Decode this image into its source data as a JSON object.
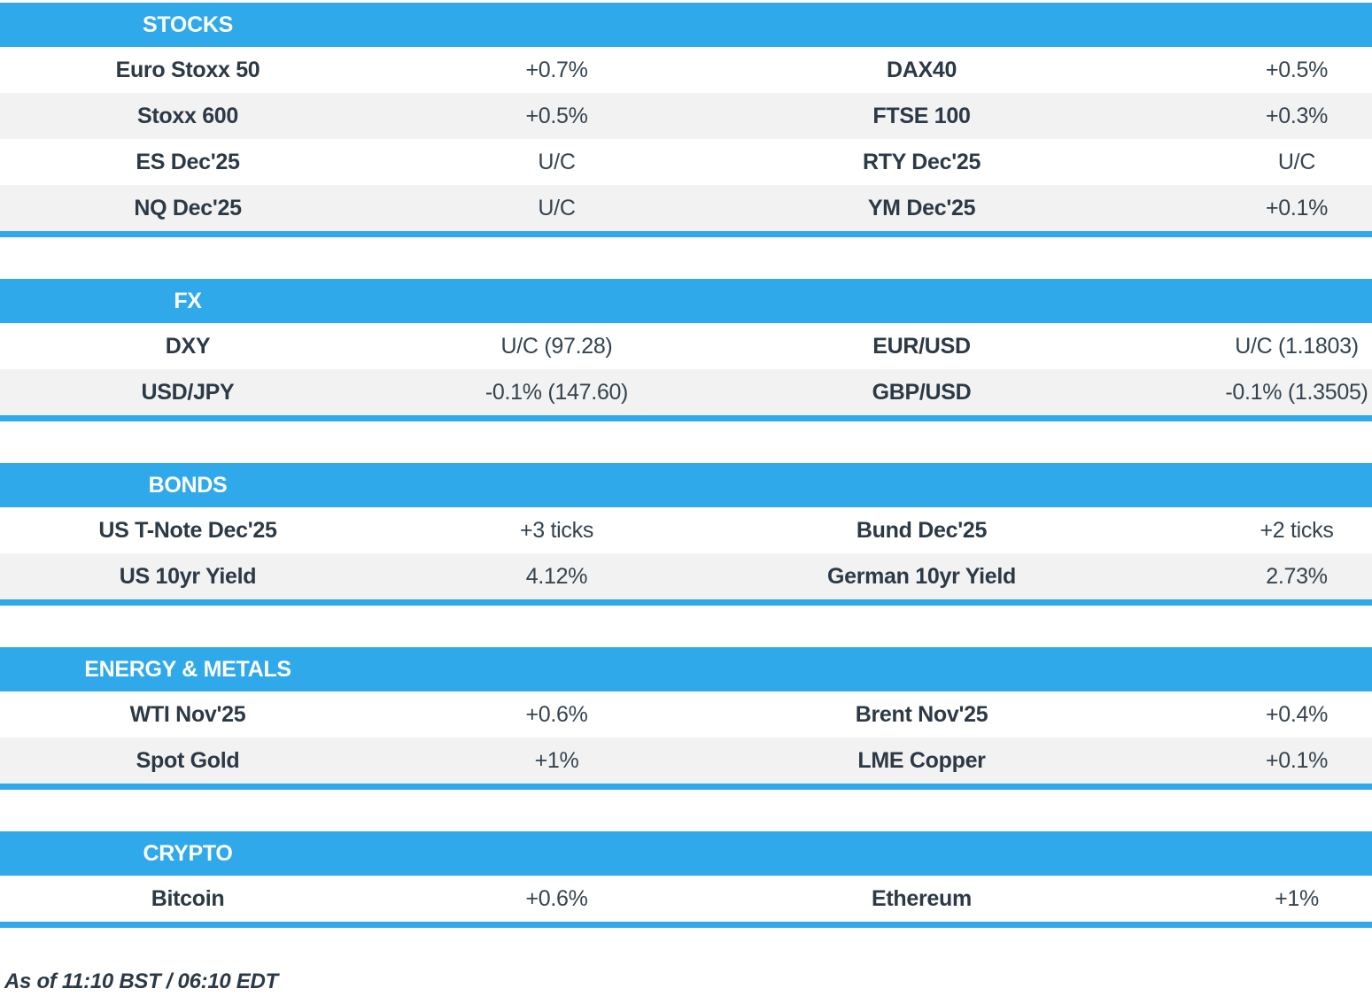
{
  "colors": {
    "accent": "#2FA9EA",
    "stripe": "#F2F2F2",
    "text": "#2C3946"
  },
  "sections": [
    {
      "title": "STOCKS",
      "rows": [
        [
          "Euro Stoxx 50",
          "+0.7%",
          "DAX40",
          "+0.5%"
        ],
        [
          "Stoxx 600",
          "+0.5%",
          "FTSE 100",
          "+0.3%"
        ],
        [
          "ES Dec'25",
          "U/C",
          "RTY Dec'25",
          "U/C"
        ],
        [
          "NQ Dec'25",
          "U/C",
          "YM Dec'25",
          "+0.1%"
        ]
      ]
    },
    {
      "title": "FX",
      "rows": [
        [
          "DXY",
          "U/C (97.28)",
          "EUR/USD",
          "U/C (1.1803)"
        ],
        [
          "USD/JPY",
          "-0.1% (147.60)",
          "GBP/USD",
          "-0.1% (1.3505)"
        ]
      ]
    },
    {
      "title": "BONDS",
      "rows": [
        [
          "US T-Note Dec'25",
          "+3 ticks",
          "Bund Dec'25",
          "+2 ticks"
        ],
        [
          "US 10yr Yield",
          "4.12%",
          "German 10yr Yield",
          "2.73%"
        ]
      ]
    },
    {
      "title": "ENERGY & METALS",
      "rows": [
        [
          "WTI Nov'25",
          "+0.6%",
          "Brent Nov'25",
          "+0.4%"
        ],
        [
          "Spot Gold",
          "+1%",
          "LME Copper",
          "+0.1%"
        ]
      ]
    },
    {
      "title": "CRYPTO",
      "rows": [
        [
          "Bitcoin",
          "+0.6%",
          "Ethereum",
          "+1%"
        ]
      ]
    }
  ],
  "footer": {
    "as_of": "As of 11:10 BST / 06:10 EDT"
  }
}
